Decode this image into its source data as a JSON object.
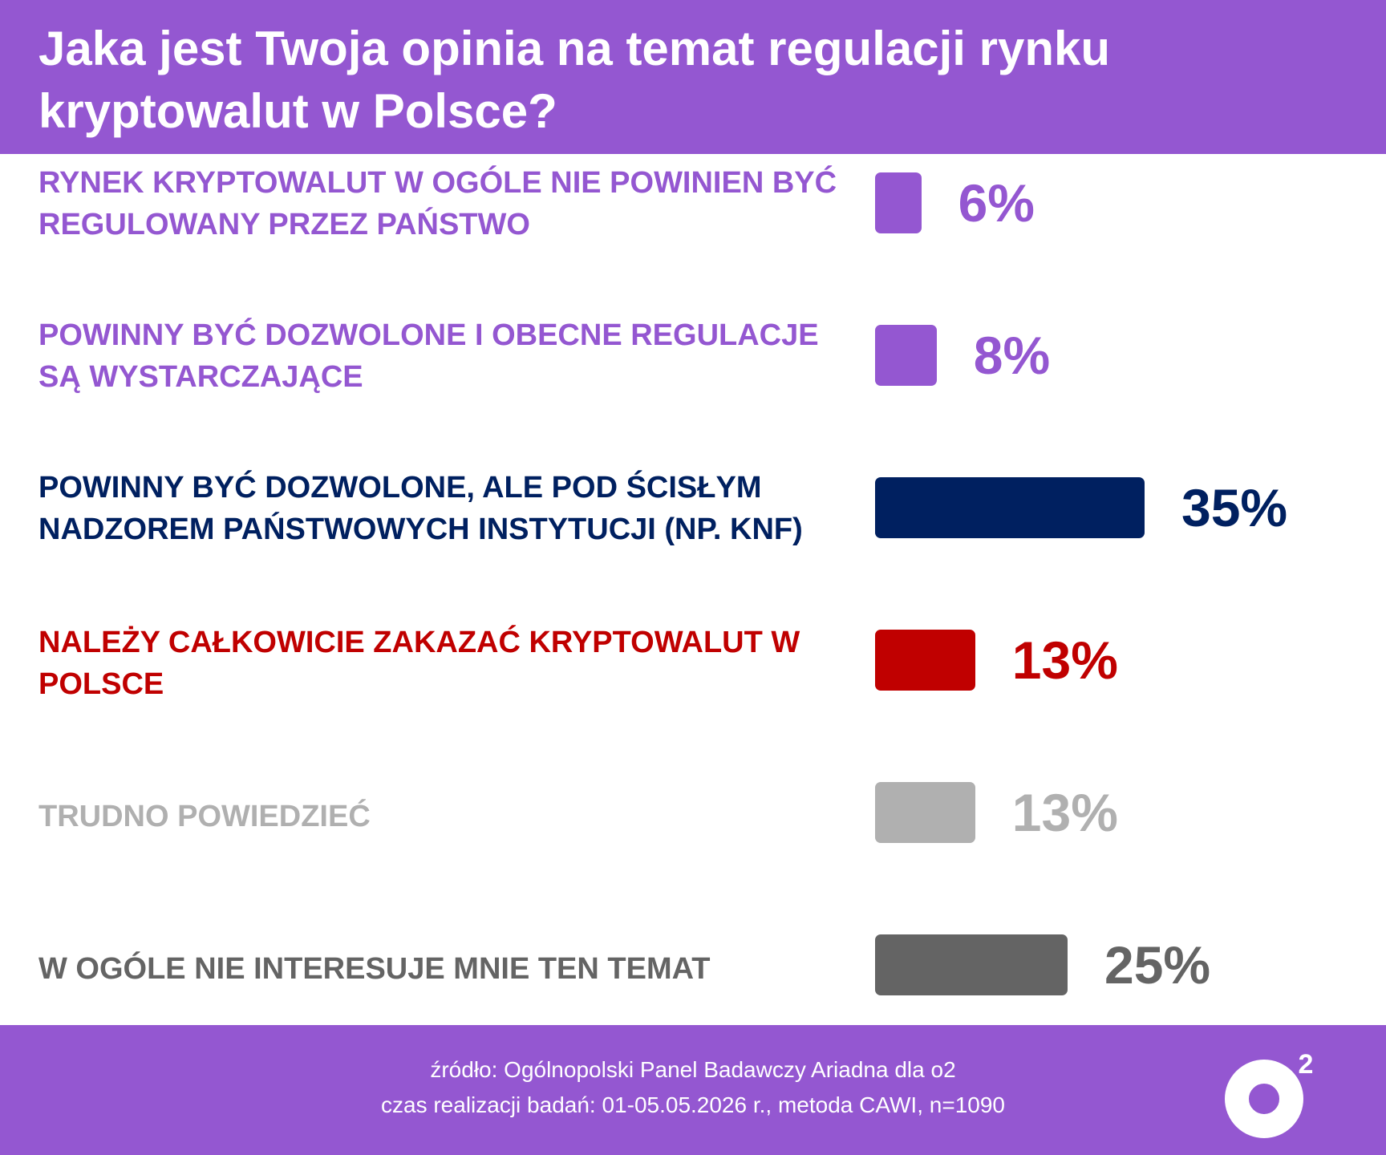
{
  "header": {
    "title": "Jaka jest Twoja opinia na temat regulacji rynku kryptowalut w Polsce?"
  },
  "chart_data": {
    "type": "bar",
    "orientation": "horizontal",
    "categories": [
      "Rynek kryptowalut w ogóle nie powinien być regulowany przez państwo",
      "Powinny być dozwolone i obecne regulacje są wystarczające",
      "Powinny być dozwolone, ale pod ścisłym nadzorem państwowych instytucji (np. KNF)",
      "Należy całkowicie zakazać kryptowalut w Polsce",
      "Trudno powiedzieć",
      "W ogóle nie interesuje mnie ten temat"
    ],
    "values": [
      6,
      8,
      35,
      13,
      13,
      25
    ],
    "value_labels": [
      "6%",
      "8%",
      "35%",
      "13%",
      "13%",
      "25%"
    ],
    "colors": [
      "#9457d1",
      "#9457d1",
      "#002060",
      "#c00000",
      "#b0b0b0",
      "#646464"
    ],
    "xlim": [
      0,
      35
    ],
    "grid": false,
    "legend": "none"
  },
  "footer": {
    "source": "źródło: Ogólnopolski Panel Badawczy Ariadna dla o2",
    "method": "czas realizacji badań: 01-05.05.2026 r., metoda CAWI, n=1090"
  },
  "logo": {
    "icon": "o2-logo-icon",
    "superscript": "2",
    "color": "#ffffff"
  }
}
